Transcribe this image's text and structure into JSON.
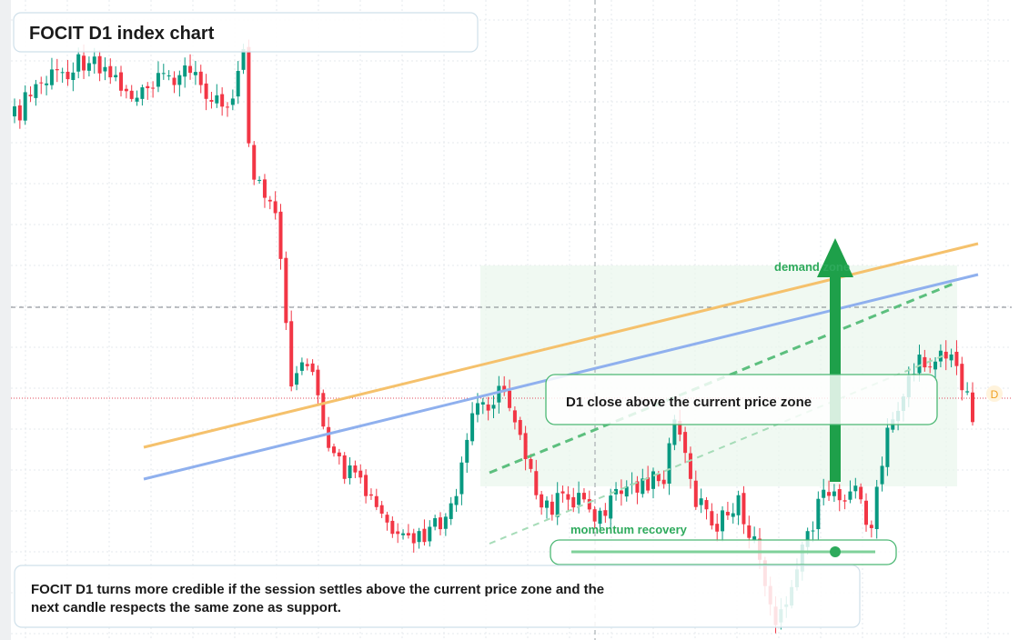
{
  "header": {
    "title": "FOCIT D1 index chart"
  },
  "labels": {
    "demand_zone": "demand zone",
    "condition": "D1 close above the current price zone",
    "momentum": "momentum recovery",
    "badge": "D"
  },
  "summary": {
    "lines": [
      "FOCIT D1 turns more credible if the session settles above the current price zone and the",
      "next candle respects the same zone as support."
    ]
  }
}
